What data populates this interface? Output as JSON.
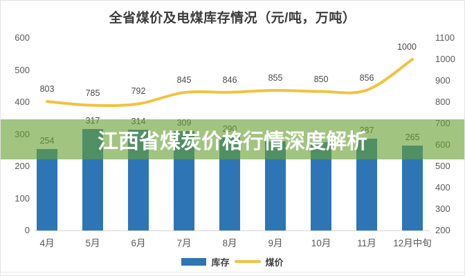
{
  "title": "全省煤价及电煤库存情况（元/吨，万吨）",
  "banner": {
    "text": "江西省煤炭价格行情深度解析"
  },
  "colors": {
    "bar": "#2E75B6",
    "line": "#F2C23E",
    "banner_overlay": "rgba(104,160,52,0.62)",
    "axis_text": "#595959",
    "label_text": "#4a4a4a"
  },
  "chart_data": {
    "type": "bar",
    "subtype": "combo-bar-line",
    "title": "全省煤价及电煤库存情况（元/吨，万吨）",
    "categories": [
      "4月",
      "5月",
      "6月",
      "7月",
      "8月",
      "9月",
      "10月",
      "11月",
      "12月中旬"
    ],
    "series": [
      {
        "name": "库存",
        "type": "bar",
        "axis": "left",
        "values": [
          254,
          317,
          314,
          309,
          290,
          278,
          275,
          287,
          265
        ],
        "data_labels": [
          "254",
          "317",
          "314",
          "309",
          "290",
          "",
          "",
          "287",
          "265"
        ]
      },
      {
        "name": "煤价",
        "type": "line",
        "axis": "right",
        "values": [
          803,
          785,
          792,
          845,
          846,
          855,
          850,
          856,
          1000
        ],
        "data_labels": [
          "803",
          "785",
          "792",
          "845",
          "846",
          "855",
          "850",
          "856",
          "1000"
        ]
      }
    ],
    "left_axis": {
      "min": 0,
      "max": 600,
      "step": 100
    },
    "right_axis": {
      "min": 200,
      "max": 1100,
      "step": 100
    },
    "grid": "off",
    "legend_position": "bottom"
  }
}
